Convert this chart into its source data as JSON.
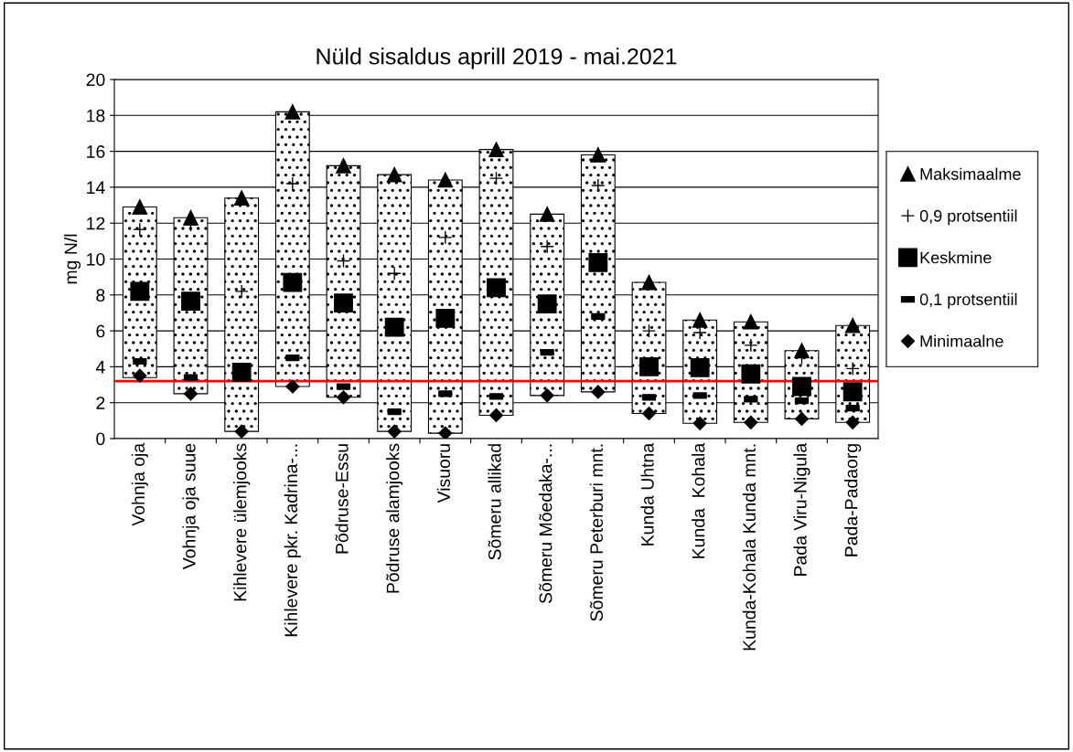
{
  "chart_data": {
    "type": "scatter",
    "title": "Nüld sisaldus aprill 2019 - mai.2021",
    "ylabel": "mg N/l",
    "categories": [
      "Vohnja oja",
      "Vohnja oja suue",
      "Kihlevere ülemjooks",
      "Kihlevere pkr. Kadrina-...",
      "Põdruse-Essu",
      "Põdruse alamjooks",
      "Visuoru",
      "Sõmeru allikad",
      "Sõmeru Mõedaka-...",
      "Sõmeru Peterburi mnt.",
      "Kunda Uhtna",
      "Kunda  Kohala",
      "Kunda-Kohala Kunda mnt.",
      "Pada Viru-Nigula",
      "Pada-Padaorg"
    ],
    "ylim": [
      0,
      20
    ],
    "yticks": [
      0,
      2,
      4,
      6,
      8,
      10,
      12,
      14,
      16,
      18,
      20
    ],
    "grid": "y",
    "legend": "right",
    "ref_lines": [
      {
        "axis": "y",
        "value": 3.2,
        "color": "#ff0000"
      }
    ],
    "series": [
      {
        "type": "bar",
        "color": "#000000",
        "base": [
          3.4,
          2.5,
          0.4,
          2.9,
          2.3,
          0.4,
          0.3,
          1.3,
          2.4,
          2.6,
          1.4,
          0.85,
          0.9,
          1.1,
          0.9
        ],
        "values": [
          9.5,
          9.8,
          13.0,
          15.3,
          12.9,
          14.3,
          14.1,
          14.8,
          10.1,
          13.2,
          7.3,
          5.75,
          5.6,
          3.8,
          5.4
        ]
      },
      {
        "name": "Maksimaalme",
        "color": "#000000",
        "marker": "triangle",
        "values": [
          12.9,
          12.3,
          13.4,
          18.2,
          15.2,
          14.7,
          14.4,
          16.1,
          12.5,
          15.8,
          8.7,
          6.6,
          6.5,
          4.9,
          6.3
        ]
      },
      {
        "name": "0,9 protsentiil",
        "color": "#000000",
        "marker": "cross",
        "values": [
          11.65,
          11.9,
          8.2,
          14.2,
          9.9,
          9.2,
          11.2,
          14.5,
          10.7,
          14.1,
          6.0,
          5.9,
          5.2,
          4.5,
          3.9
        ]
      },
      {
        "name": "Keskmine",
        "color": "#000000",
        "marker": "square",
        "values": [
          8.2,
          7.65,
          3.7,
          8.7,
          7.55,
          6.2,
          6.7,
          8.4,
          7.5,
          9.8,
          4.0,
          3.95,
          3.6,
          2.9,
          2.6
        ]
      },
      {
        "name": "0,1 protsentiil",
        "color": "#000000",
        "values": [
          4.3,
          3.4,
          null,
          4.5,
          2.9,
          1.5,
          2.5,
          2.35,
          4.8,
          6.8,
          2.3,
          2.4,
          2.2,
          2.1,
          1.7
        ]
      },
      {
        "name": "Minimaalne",
        "color": "#000000",
        "marker": "diamond",
        "values": [
          3.5,
          2.5,
          0.4,
          2.9,
          2.3,
          0.4,
          0.3,
          1.3,
          2.4,
          2.6,
          1.4,
          0.85,
          0.9,
          1.1,
          0.9
        ]
      }
    ]
  }
}
